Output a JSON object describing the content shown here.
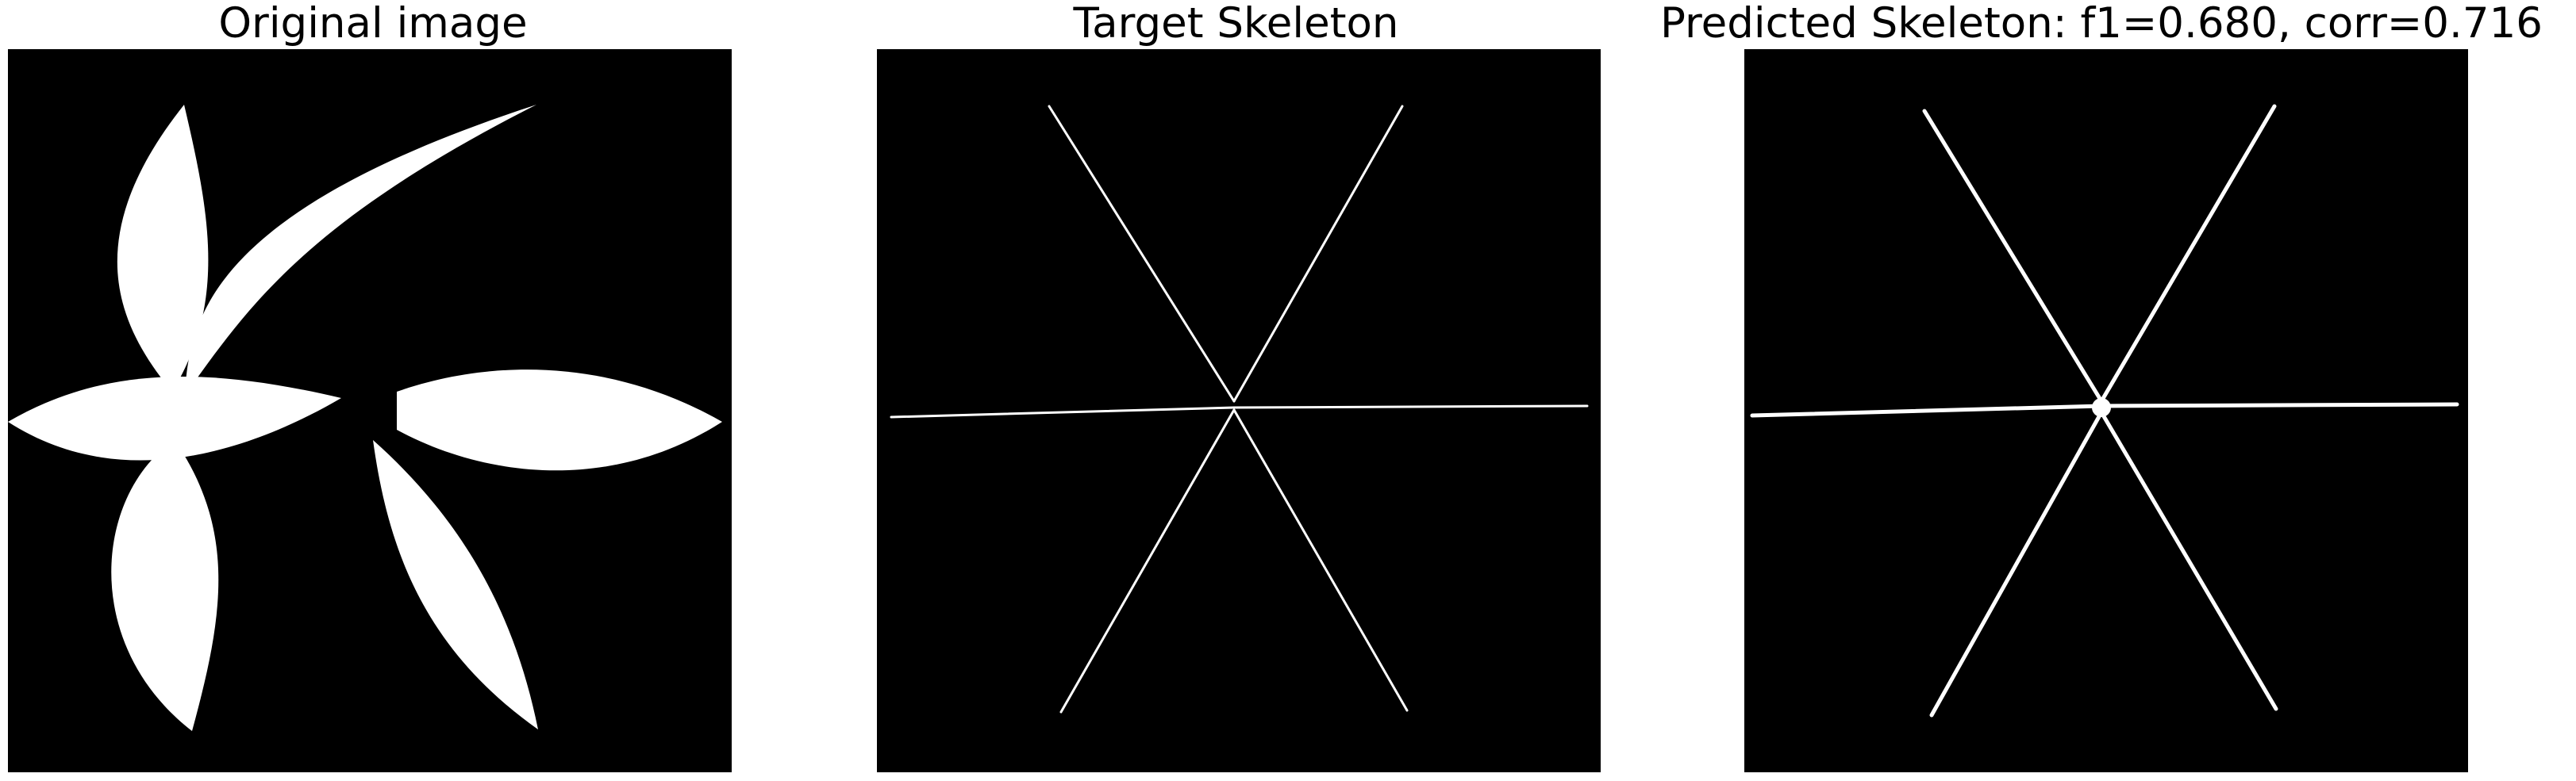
{
  "panels": [
    {
      "title": "Original image"
    },
    {
      "title": "Target Skeleton"
    },
    {
      "title": "Predicted Skeleton: f1=0.680, corr=0.716"
    }
  ],
  "colors": {
    "background": "#000000",
    "foreground": "#ffffff",
    "page": "#ffffff"
  }
}
